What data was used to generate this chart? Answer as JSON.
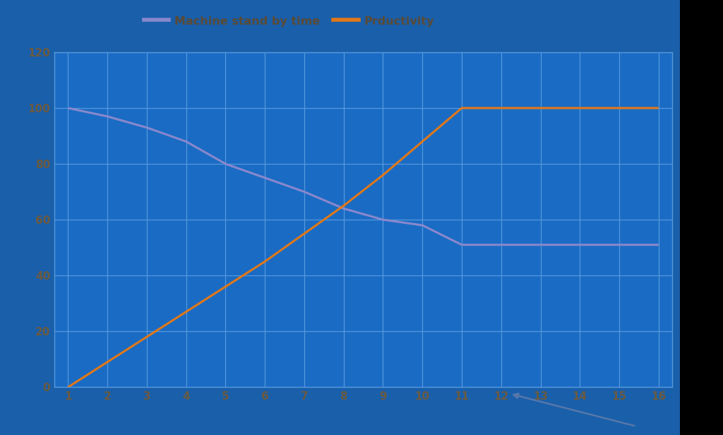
{
  "bg_color": "#000000",
  "plot_bg_color": "#1a6bc4",
  "plot_border_color": "#3a7fd4",
  "outer_bg_color": "#1a5faa",
  "grid_color": "#5599dd",
  "x_values": [
    1,
    2,
    3,
    4,
    5,
    6,
    7,
    8,
    9,
    10,
    11,
    12,
    13,
    14,
    15,
    16
  ],
  "machine_standby": [
    100,
    97,
    93,
    88,
    80,
    75,
    70,
    64,
    60,
    58,
    51,
    51,
    51,
    51,
    51,
    51
  ],
  "productivity": [
    0,
    9,
    18,
    27,
    36,
    45,
    55,
    65,
    76,
    88,
    100,
    100,
    100,
    100,
    100,
    100
  ],
  "machine_color": "#8888cc",
  "productivity_color": "#e07818",
  "legend_machine": "Machine stand by time",
  "legend_productivity": "Prductivity",
  "ylim": [
    0,
    120
  ],
  "xlim": [
    1,
    16
  ],
  "yticks": [
    0,
    20,
    40,
    60,
    80,
    100,
    120
  ],
  "xticks": [
    1,
    2,
    3,
    4,
    5,
    6,
    7,
    8,
    9,
    10,
    11,
    12,
    13,
    14,
    15,
    16
  ],
  "tick_color": "#6b5a40",
  "legend_text_color": "#5a4a35",
  "line_width": 2.2,
  "figsize": [
    10.24,
    6.16
  ],
  "dpi": 100,
  "arrow_color": "#5577aa"
}
